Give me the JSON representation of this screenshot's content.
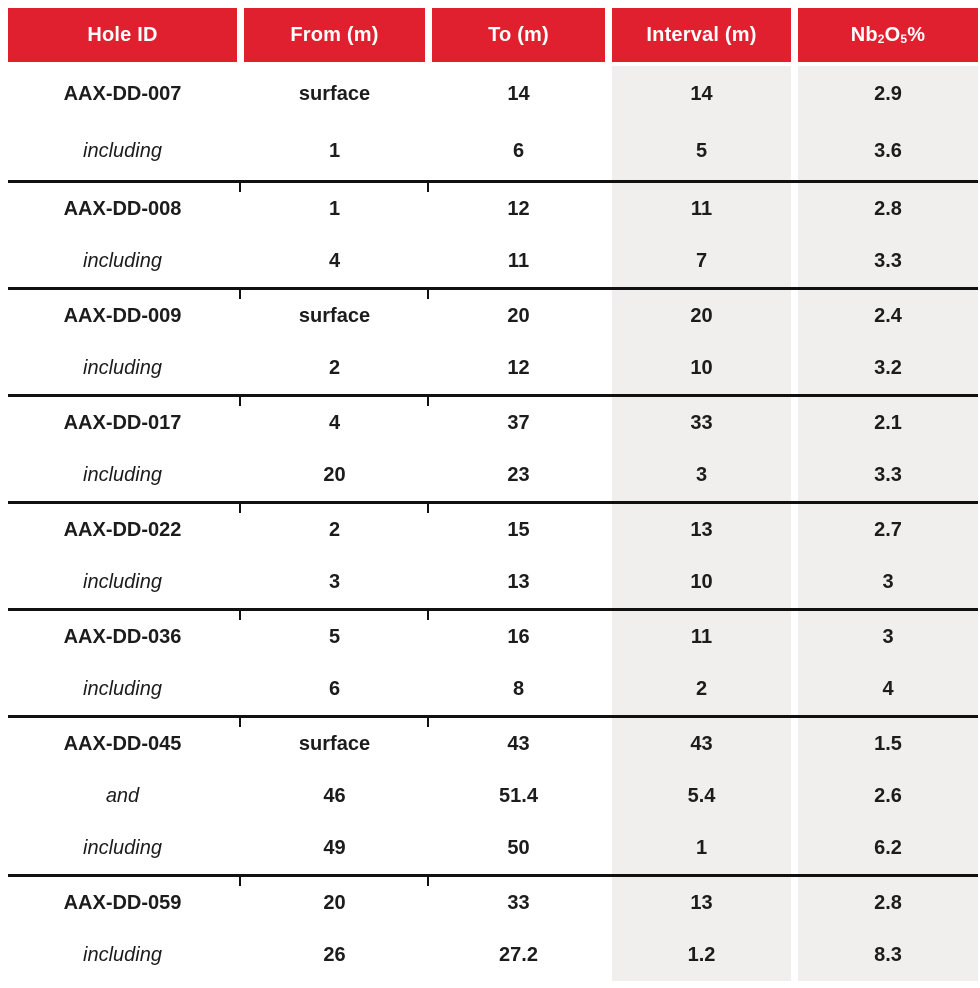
{
  "colors": {
    "header_bg": "#e0202e",
    "header_text": "#ffffff",
    "shaded_column_bg": "#f0efed",
    "separator_line": "#111111",
    "body_text": "#1c1c1c"
  },
  "table": {
    "header": {
      "col1": "Hole ID",
      "col2": "From (m)",
      "col3": "To (m)",
      "col4": "Interval (m)",
      "col5": {
        "p1": "Nb",
        "sub1": "2",
        "p2": "O",
        "sub2": "5",
        "p3": " %"
      }
    },
    "shaded_columns": [
      "Interval (m)",
      "Nb2O5 %"
    ],
    "rows": [
      {
        "type": "hole",
        "c1": "AAX-DD-007",
        "c2": "surface",
        "c3": "14",
        "c4": "14",
        "c5": "2.9"
      },
      {
        "type": "qualifier",
        "c1": "including",
        "c2": "1",
        "c3": "6",
        "c4": "5",
        "c5": "3.6"
      },
      {
        "type": "hole",
        "c1": "AAX-DD-008",
        "c2": "1",
        "c3": "12",
        "c4": "11",
        "c5": "2.8"
      },
      {
        "type": "qualifier",
        "c1": "including",
        "c2": "4",
        "c3": "11",
        "c4": "7",
        "c5": "3.3"
      },
      {
        "type": "hole",
        "c1": "AAX-DD-009",
        "c2": "surface",
        "c3": "20",
        "c4": "20",
        "c5": "2.4"
      },
      {
        "type": "qualifier",
        "c1": "including",
        "c2": "2",
        "c3": "12",
        "c4": "10",
        "c5": "3.2"
      },
      {
        "type": "hole",
        "c1": "AAX-DD-017",
        "c2": "4",
        "c3": "37",
        "c4": "33",
        "c5": "2.1"
      },
      {
        "type": "qualifier",
        "c1": "including",
        "c2": "20",
        "c3": "23",
        "c4": "3",
        "c5": "3.3"
      },
      {
        "type": "hole",
        "c1": "AAX-DD-022",
        "c2": "2",
        "c3": "15",
        "c4": "13",
        "c5": "2.7"
      },
      {
        "type": "qualifier",
        "c1": "including",
        "c2": "3",
        "c3": "13",
        "c4": "10",
        "c5": "3"
      },
      {
        "type": "hole",
        "c1": "AAX-DD-036",
        "c2": "5",
        "c3": "16",
        "c4": "11",
        "c5": "3"
      },
      {
        "type": "qualifier",
        "c1": "including",
        "c2": "6",
        "c3": "8",
        "c4": "2",
        "c5": "4"
      },
      {
        "type": "hole",
        "c1": "AAX-DD-045",
        "c2": "surface",
        "c3": "43",
        "c4": "43",
        "c5": "1.5"
      },
      {
        "type": "qualifier",
        "c1": "and",
        "c2": "46",
        "c3": "51.4",
        "c4": "5.4",
        "c5": "2.6"
      },
      {
        "type": "qualifier",
        "c1": "including",
        "c2": "49",
        "c3": "50",
        "c4": "1",
        "c5": "6.2"
      },
      {
        "type": "hole",
        "c1": "AAX-DD-059",
        "c2": "20",
        "c3": "33",
        "c4": "13",
        "c5": "2.8"
      },
      {
        "type": "qualifier",
        "c1": "including",
        "c2": "26",
        "c3": "27.2",
        "c4": "1.2",
        "c5": "8.3"
      }
    ]
  }
}
